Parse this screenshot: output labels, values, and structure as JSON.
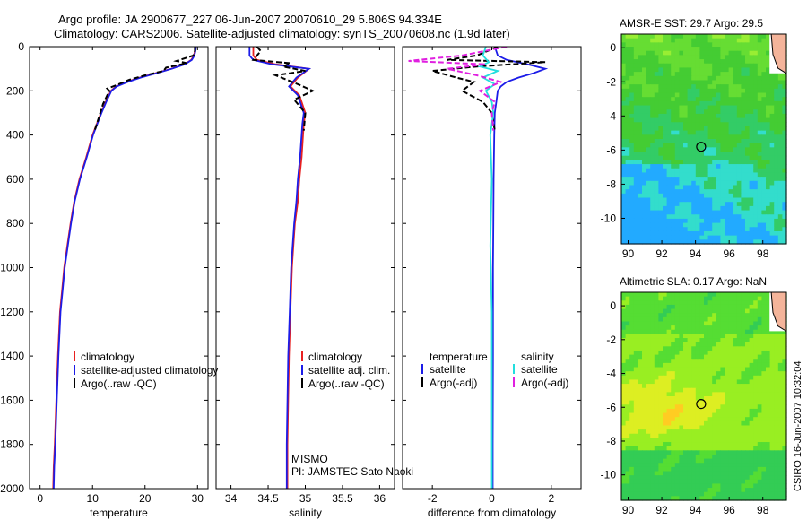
{
  "header": {
    "line1": "Argo profile: JA 2900677_227 06-Jun-2007 20070610_29 5.806S 94.334E",
    "line2": "Climatology: CARS2006. Satellite-adjusted climatology: synTS_20070608.nc (1.9d later)"
  },
  "side_label": "CSIRO 16-Jun-2007 10:32:04",
  "colors": {
    "climatology": "#e82020",
    "satellite": "#1c1ce8",
    "argo": "#000000",
    "sal_sat": "#22dede",
    "sal_argo": "#e020e0"
  },
  "chart_data": [
    {
      "type": "line",
      "id": "temperature",
      "xlabel": "temperature",
      "ylabel": "",
      "xlim": [
        -2,
        32
      ],
      "ylim": [
        2000,
        0
      ],
      "xticks": [
        0,
        10,
        20,
        30
      ],
      "yticks": [
        0,
        200,
        400,
        600,
        800,
        1000,
        1200,
        1400,
        1600,
        1800,
        2000
      ],
      "series": [
        {
          "name": "climatology",
          "color": "#e82020",
          "dash": "",
          "x": [
            29.6,
            29.5,
            29.3,
            28.8,
            27.5,
            25.0,
            22.0,
            19.0,
            16.5,
            14.5,
            13.5,
            12.5,
            11.6,
            10.8,
            10.0,
            8.8,
            7.5,
            6.5,
            5.8,
            5.2,
            4.6,
            4.2,
            3.8,
            3.4,
            3.1,
            2.8,
            2.6,
            2.5
          ],
          "y": [
            0,
            20,
            40,
            60,
            80,
            100,
            120,
            140,
            160,
            180,
            200,
            250,
            300,
            350,
            400,
            500,
            600,
            700,
            800,
            900,
            1000,
            1100,
            1200,
            1400,
            1600,
            1800,
            1900,
            2000
          ]
        },
        {
          "name": "satellite-adjusted climatology",
          "color": "#1c1ce8",
          "dash": "",
          "x": [
            29.7,
            29.6,
            29.4,
            28.9,
            27.6,
            25.1,
            22.2,
            19.2,
            16.7,
            14.6,
            13.6,
            12.6,
            11.7,
            10.9,
            10.1,
            8.9,
            7.6,
            6.6,
            5.9,
            5.3,
            4.7,
            4.3,
            3.9,
            3.5,
            3.2,
            2.9,
            2.7,
            2.6
          ],
          "y": [
            0,
            20,
            40,
            60,
            80,
            100,
            120,
            140,
            160,
            180,
            200,
            250,
            300,
            350,
            400,
            500,
            600,
            700,
            800,
            900,
            1000,
            1100,
            1200,
            1400,
            1600,
            1800,
            1900,
            2000
          ]
        },
        {
          "name": "Argo(..raw -QC)",
          "color": "#000000",
          "dash": "6,3",
          "x": [
            29.5,
            29.5,
            29.2,
            26.0,
            28.0,
            24.0,
            23.5,
            20.0,
            17.0,
            14.5,
            12.8,
            13.2,
            12.0,
            11.2,
            10.4
          ],
          "y": [
            0,
            20,
            40,
            65,
            75,
            95,
            110,
            130,
            150,
            175,
            190,
            200,
            260,
            320,
            380
          ]
        }
      ],
      "legend": [
        {
          "label": "climatology",
          "color": "#e82020"
        },
        {
          "label": "satellite-adjusted climatology",
          "color": "#1c1ce8"
        },
        {
          "label": "Argo(..raw -QC)",
          "color": "#000000"
        }
      ]
    },
    {
      "type": "line",
      "id": "salinity",
      "xlabel": "salinity",
      "xlim": [
        33.8,
        36.2
      ],
      "ylim": [
        2000,
        0
      ],
      "xticks": [
        34,
        34.5,
        35,
        35.5,
        36
      ],
      "series": [
        {
          "name": "climatology",
          "color": "#e82020",
          "dash": "",
          "x": [
            34.3,
            34.3,
            34.35,
            34.6,
            35.05,
            34.9,
            34.8,
            34.92,
            35.0,
            34.98,
            34.97,
            34.95,
            34.92,
            34.9,
            34.86,
            34.84,
            34.82,
            34.8,
            34.78,
            34.77,
            34.76,
            34.76
          ],
          "y": [
            0,
            40,
            60,
            80,
            100,
            140,
            180,
            220,
            300,
            350,
            400,
            500,
            600,
            700,
            800,
            900,
            1000,
            1200,
            1400,
            1600,
            1800,
            2000
          ]
        },
        {
          "name": "satellite adj. clim.",
          "color": "#1c1ce8",
          "dash": "",
          "x": [
            34.25,
            34.25,
            34.3,
            34.55,
            35.05,
            34.88,
            34.78,
            34.9,
            34.98,
            34.96,
            34.95,
            34.93,
            34.9,
            34.88,
            34.85,
            34.83,
            34.81,
            34.79,
            34.77,
            34.76,
            34.75,
            34.75
          ],
          "y": [
            0,
            40,
            60,
            80,
            100,
            140,
            180,
            220,
            300,
            350,
            400,
            500,
            600,
            700,
            800,
            900,
            1000,
            1200,
            1400,
            1600,
            1800,
            2000
          ]
        },
        {
          "name": "Argo(..raw -QC)",
          "color": "#000000",
          "dash": "6,3",
          "x": [
            34.35,
            34.4,
            34.3,
            34.8,
            34.7,
            35.0,
            34.6,
            34.9,
            35.1,
            34.85,
            35.0,
            34.98
          ],
          "y": [
            0,
            20,
            60,
            75,
            90,
            110,
            130,
            170,
            200,
            240,
            300,
            380
          ]
        }
      ],
      "legend": [
        {
          "label": "climatology",
          "color": "#e82020"
        },
        {
          "label": "satellite adj. clim.",
          "color": "#1c1ce8"
        },
        {
          "label": "Argo(..raw -QC)",
          "color": "#000000"
        }
      ],
      "annotation": [
        "MISMO",
        "PI: JAMSTEC Sato Naoki"
      ]
    },
    {
      "type": "line",
      "id": "difference",
      "xlabel": "difference from climatology",
      "xlim": [
        -3,
        3
      ],
      "ylim": [
        2000,
        0
      ],
      "xticks": [
        -2,
        0,
        2
      ],
      "series": [
        {
          "name": "temperature satellite",
          "color": "#1c1ce8",
          "dash": "",
          "x": [
            0.1,
            0.2,
            0.5,
            1.2,
            1.8,
            1.4,
            0.9,
            0.5,
            0.3,
            0.2,
            0.15,
            0.1,
            0.08,
            0.06,
            0.05,
            0.04,
            0.04,
            0.03,
            0.03
          ],
          "y": [
            0,
            40,
            60,
            80,
            100,
            120,
            140,
            160,
            180,
            200,
            250,
            300,
            400,
            600,
            800,
            1000,
            1400,
            1800,
            2000
          ]
        },
        {
          "name": "temperature Argo(-adj)",
          "color": "#000000",
          "dash": "6,3",
          "x": [
            0.2,
            -0.5,
            -1.5,
            1.8,
            -0.5,
            -2.0,
            -1.2,
            -0.6,
            -1.0,
            -0.3,
            0.0,
            0.1
          ],
          "y": [
            0,
            40,
            60,
            70,
            90,
            110,
            140,
            160,
            200,
            250,
            300,
            380
          ]
        },
        {
          "name": "salinity satellite",
          "color": "#22dede",
          "dash": "",
          "x": [
            -0.2,
            -0.3,
            -0.1,
            -0.4,
            0.2,
            -0.3,
            0.1,
            -0.2,
            0.0,
            0.05,
            -0.05,
            0.0,
            -0.05,
            0.0,
            0.0,
            0.0
          ],
          "y": [
            0,
            40,
            70,
            90,
            110,
            140,
            170,
            200,
            250,
            300,
            400,
            600,
            900,
            1200,
            1600,
            2000
          ]
        },
        {
          "name": "salinity Argo(-adj)",
          "color": "#e020e0",
          "dash": "6,3",
          "x": [
            0.5,
            -1.0,
            -2.8,
            -0.2,
            -1.5,
            -0.5,
            0.3,
            -0.4,
            0.1,
            0.0,
            0.05
          ],
          "y": [
            0,
            40,
            65,
            80,
            100,
            130,
            160,
            200,
            250,
            300,
            380
          ]
        }
      ],
      "legend_titles": [
        "temperature",
        "salinity"
      ],
      "legend": [
        {
          "label": "satellite",
          "color": "#1c1ce8"
        },
        {
          "label": "Argo(-adj)",
          "color": "#000000"
        },
        {
          "label": "satellite",
          "color": "#22dede"
        },
        {
          "label": "Argo(-adj)",
          "color": "#e020e0"
        }
      ]
    },
    {
      "type": "heatmap",
      "id": "sst_map",
      "title": "AMSR-E SST: 29.7 Argo: 29.5",
      "xlim": [
        89.6,
        99.4
      ],
      "ylim": [
        -11.5,
        0.8
      ],
      "xticks": [
        90,
        92,
        94,
        96,
        98
      ],
      "yticks": [
        0,
        -2,
        -4,
        -6,
        -8,
        -10
      ],
      "marker": {
        "lon": 94.334,
        "lat": -5.806
      },
      "palette": [
        "#22aaff",
        "#33ddcc",
        "#33cc66",
        "#44cc33",
        "#66dd33",
        "#99ee33"
      ]
    },
    {
      "type": "heatmap",
      "id": "sla_map",
      "title": "Altimetric SLA: 0.17 Argo: NaN",
      "xlim": [
        89.6,
        99.4
      ],
      "ylim": [
        -11.5,
        0.8
      ],
      "xticks": [
        90,
        92,
        94,
        96,
        98
      ],
      "yticks": [
        0,
        -2,
        -4,
        -6,
        -8,
        -10
      ],
      "marker": {
        "lon": 94.334,
        "lat": -5.806
      },
      "palette": [
        "#33bb88",
        "#33cc55",
        "#55dd33",
        "#99ee22",
        "#ddee22",
        "#ffcc22"
      ]
    }
  ]
}
